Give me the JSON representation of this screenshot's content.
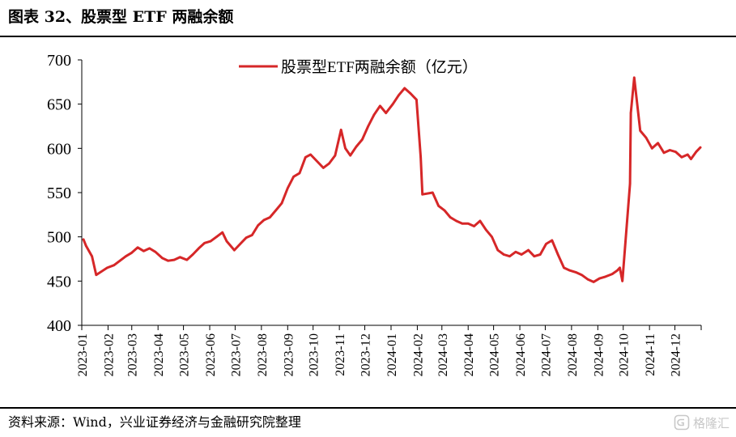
{
  "figure_title": "图表 32、股票型 ETF 两融余额",
  "source": "资料来源：Wind，兴业证券经济与金融研究院整理",
  "watermark": "格隆汇",
  "chart_data": {
    "type": "line",
    "title": "",
    "xlabel": "",
    "ylabel": "",
    "ylim": [
      400,
      700
    ],
    "y_ticks": [
      400,
      450,
      500,
      550,
      600,
      650,
      700
    ],
    "x_tick_labels": [
      "2023-01",
      "2023-02",
      "2023-03",
      "2023-04",
      "2023-05",
      "2023-06",
      "2023-07",
      "2023-08",
      "2023-09",
      "2023-10",
      "2023-11",
      "2023-12",
      "2024-01",
      "2024-02",
      "2024-03",
      "2024-04",
      "2024-05",
      "2024-06",
      "2024-07",
      "2024-08",
      "2024-09",
      "2024-10",
      "2024-11",
      "2024-12"
    ],
    "grid": false,
    "legend": "top-center",
    "series": [
      {
        "name": "股票型ETF两融余额（亿元）",
        "color": "#d62728",
        "x": [
          "2023-01-03",
          "2023-01-06",
          "2023-01-13",
          "2023-01-18",
          "2023-01-31",
          "2023-02-08",
          "2023-02-15",
          "2023-02-22",
          "2023-03-01",
          "2023-03-08",
          "2023-03-15",
          "2023-03-22",
          "2023-03-29",
          "2023-04-06",
          "2023-04-13",
          "2023-04-20",
          "2023-04-27",
          "2023-05-05",
          "2023-05-12",
          "2023-05-19",
          "2023-05-26",
          "2023-06-02",
          "2023-06-09",
          "2023-06-16",
          "2023-06-21",
          "2023-06-30",
          "2023-07-07",
          "2023-07-14",
          "2023-07-21",
          "2023-07-28",
          "2023-08-04",
          "2023-08-11",
          "2023-08-18",
          "2023-08-25",
          "2023-09-01",
          "2023-09-08",
          "2023-09-15",
          "2023-09-22",
          "2023-09-28",
          "2023-10-13",
          "2023-10-20",
          "2023-10-27",
          "2023-11-03",
          "2023-11-08",
          "2023-11-14",
          "2023-11-21",
          "2023-11-28",
          "2023-12-05",
          "2023-12-12",
          "2023-12-19",
          "2023-12-26",
          "2024-01-03",
          "2024-01-10",
          "2024-01-17",
          "2024-01-24",
          "2024-01-31",
          "2024-02-05",
          "2024-02-07",
          "2024-02-19",
          "2024-02-26",
          "2024-03-04",
          "2024-03-11",
          "2024-03-18",
          "2024-03-25",
          "2024-04-01",
          "2024-04-08",
          "2024-04-15",
          "2024-04-22",
          "2024-04-29",
          "2024-05-06",
          "2024-05-13",
          "2024-05-20",
          "2024-05-27",
          "2024-06-03",
          "2024-06-11",
          "2024-06-18",
          "2024-06-25",
          "2024-07-02",
          "2024-07-09",
          "2024-07-16",
          "2024-07-23",
          "2024-07-30",
          "2024-08-06",
          "2024-08-13",
          "2024-08-20",
          "2024-08-27",
          "2024-09-03",
          "2024-09-10",
          "2024-09-18",
          "2024-09-24",
          "2024-09-27",
          "2024-09-30",
          "2024-10-09",
          "2024-10-10",
          "2024-10-14",
          "2024-10-21",
          "2024-10-28",
          "2024-11-04",
          "2024-11-11",
          "2024-11-18",
          "2024-11-25",
          "2024-12-02",
          "2024-12-09",
          "2024-12-16",
          "2024-12-20",
          "2024-12-26",
          "2024-12-31"
        ],
        "values": [
          497,
          490,
          478,
          457,
          465,
          468,
          473,
          478,
          482,
          488,
          484,
          487,
          483,
          476,
          473,
          474,
          477,
          474,
          480,
          487,
          493,
          495,
          500,
          505,
          495,
          485,
          492,
          499,
          502,
          513,
          519,
          522,
          530,
          538,
          555,
          568,
          572,
          590,
          593,
          578,
          583,
          592,
          621,
          600,
          592,
          602,
          610,
          625,
          638,
          648,
          640,
          650,
          660,
          668,
          662,
          655,
          590,
          548,
          550,
          535,
          530,
          522,
          518,
          515,
          515,
          512,
          518,
          508,
          500,
          485,
          480,
          478,
          483,
          480,
          485,
          478,
          480,
          492,
          496,
          480,
          465,
          462,
          460,
          457,
          452,
          449,
          453,
          455,
          458,
          462,
          465,
          450,
          560,
          640,
          680,
          620,
          612,
          600,
          606,
          595,
          598,
          596,
          590,
          593,
          588,
          596,
          601
        ]
      }
    ]
  }
}
